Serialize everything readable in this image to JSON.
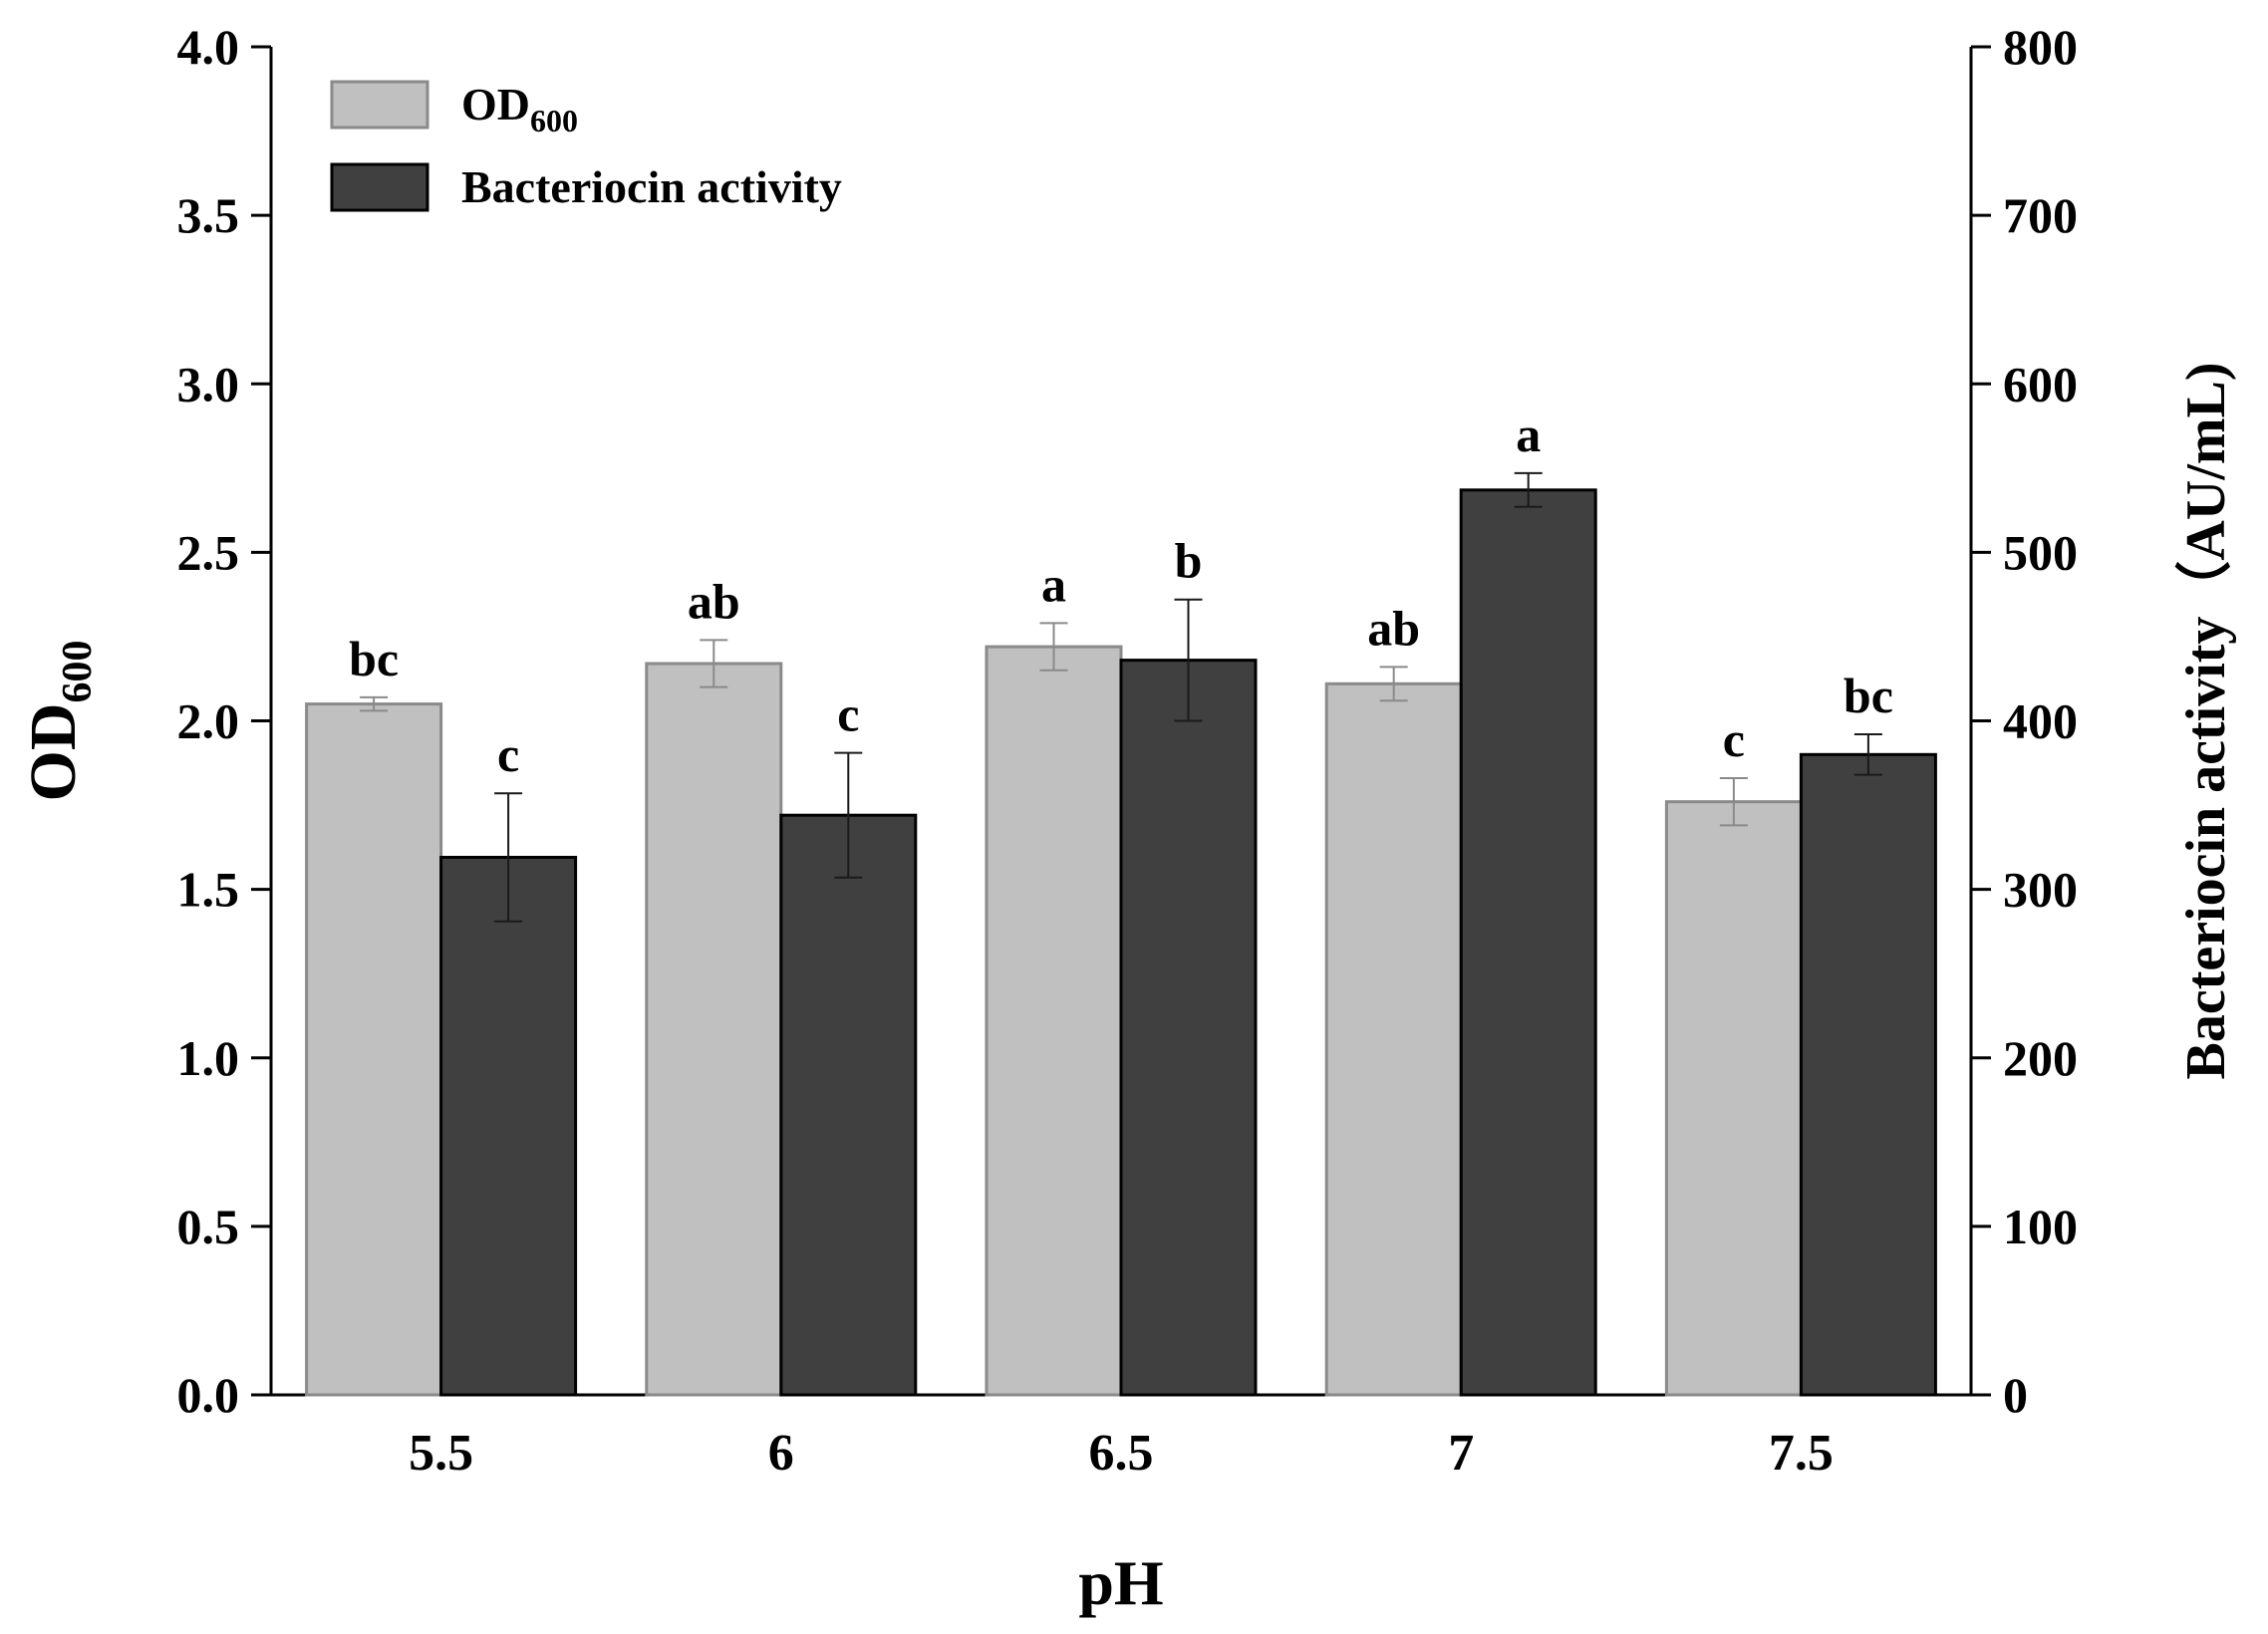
{
  "chart_data": {
    "type": "bar",
    "title": "",
    "xlabel": "pH",
    "ylabel": {
      "main": "OD",
      "sub": "600"
    },
    "y2label": "Bacteriocin activity（AU/mL)",
    "categories": [
      "5.5",
      "6",
      "6.5",
      "7",
      "7.5"
    ],
    "ylim": [
      0,
      4.0
    ],
    "y2lim": [
      0,
      800
    ],
    "yticks": [
      "0.0",
      "0.5",
      "1.0",
      "1.5",
      "2.0",
      "2.5",
      "3.0",
      "3.5",
      "4.0"
    ],
    "y2ticks": [
      "0",
      "100",
      "200",
      "300",
      "400",
      "500",
      "600",
      "700",
      "800"
    ],
    "series": [
      {
        "name": "OD600",
        "legend_main": "OD",
        "legend_sub": "600",
        "axis": "left",
        "color": "#c0c0c0",
        "edge": "#8a8a8a",
        "error_color": "#8a8a8a",
        "values": [
          2.05,
          2.17,
          2.22,
          2.11,
          1.76
        ],
        "errors": [
          0.02,
          0.07,
          0.07,
          0.05,
          0.07
        ],
        "labels": [
          "bc",
          "ab",
          "a",
          "ab",
          "c"
        ]
      },
      {
        "name": "Bacteriocin activity",
        "legend_main": "Bacteriocin activity",
        "legend_sub": "",
        "axis": "right",
        "color": "#404040",
        "edge": "#000000",
        "error_color": "#1a1a1a",
        "values": [
          319,
          344,
          436,
          537,
          380
        ],
        "errors": [
          38,
          37,
          36,
          10,
          12
        ],
        "labels": [
          "c",
          "c",
          "b",
          "a",
          "bc"
        ]
      }
    ],
    "legend_position": "top-left"
  }
}
